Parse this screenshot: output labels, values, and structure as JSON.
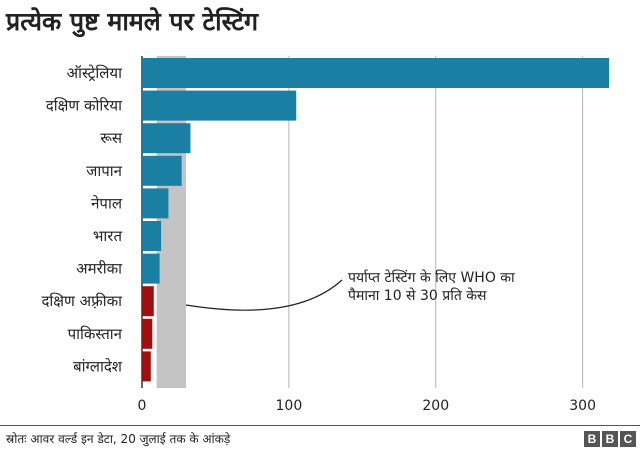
{
  "title": "प्रत्येक पुष्ट मामले पर टेस्टिंग",
  "source": "स्रोतः आवर वर्ल्ड इन डेटा, 20 जुलाई तक के आंकड़े",
  "logo": [
    "B",
    "B",
    "C"
  ],
  "annotation": {
    "lines": [
      "पर्याप्त टेस्टिंग के लिए WHO का",
      "पैमाना 10 से 30 प्रति केस"
    ],
    "band_range": [
      10,
      30
    ]
  },
  "colors": {
    "bar_teal": "#1a7fa2",
    "bar_red": "#a00f0f",
    "band": "#c4c4c4",
    "grid": "#b4b4b4",
    "axis": "#333333"
  },
  "chart_data": {
    "type": "bar",
    "orientation": "horizontal",
    "title": "प्रत्येक पुष्ट मामले पर टेस्टिंग",
    "categories": [
      "ऑस्ट्रेलिया",
      "दक्षिण कोरिया",
      "रूस",
      "जापान",
      "नेपाल",
      "भारत",
      "अमरीका",
      "दक्षिण अफ़्रीका",
      "पाकिस्तान",
      "बांग्लादेश"
    ],
    "values": [
      318,
      105,
      33,
      27,
      18,
      13,
      12,
      8,
      7,
      6
    ],
    "bar_colors": [
      "#1a7fa2",
      "#1a7fa2",
      "#1a7fa2",
      "#1a7fa2",
      "#1a7fa2",
      "#1a7fa2",
      "#1a7fa2",
      "#a00f0f",
      "#a00f0f",
      "#a00f0f"
    ],
    "xlim": [
      0,
      320
    ],
    "xticks": [
      0,
      100,
      200,
      300
    ],
    "grid": "vertical",
    "xlabel": "",
    "ylabel": ""
  }
}
